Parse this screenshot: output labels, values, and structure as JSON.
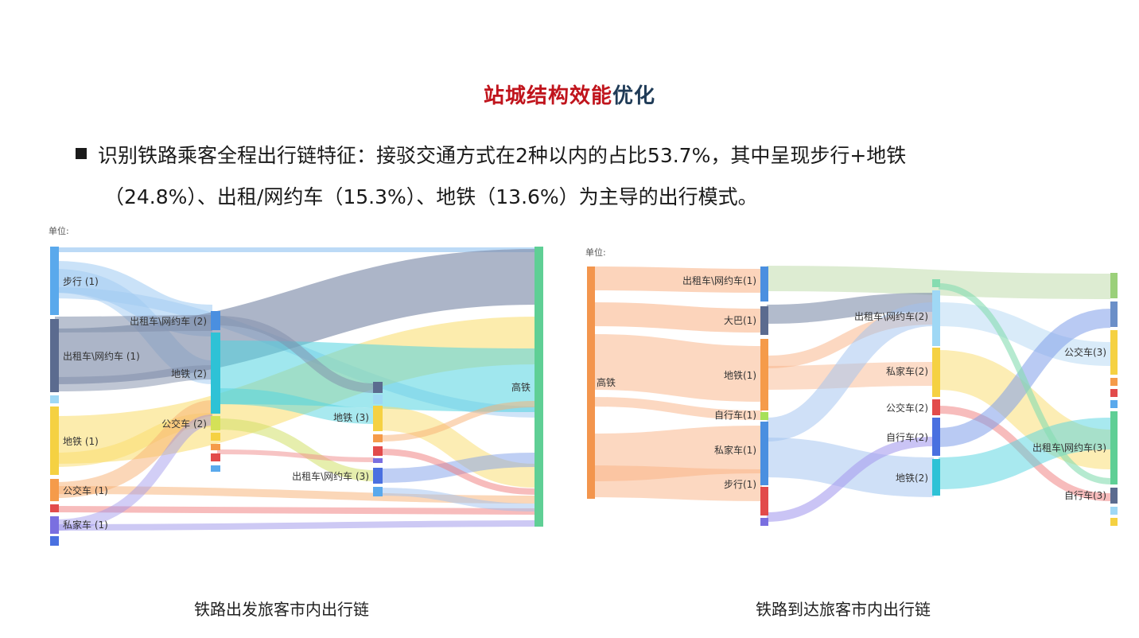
{
  "title": {
    "part1": "站城结构效能",
    "part2": "优化"
  },
  "bullet": {
    "line1": "识别铁路乘客全程出行链特征：接驳交通方式在2种以内的占比53.7%，其中呈现步行+地铁",
    "line2": "（24.8%）、出租/网约车（15.3%）、地铁（13.6%）为主导的出行模式。"
  },
  "left_chart": {
    "unit": "单位:",
    "caption": "铁路出发旅客市内出行链",
    "labels": {
      "walk1": "步行 (1)",
      "taxi1": "出租车\\网约车 (1)",
      "metro1": "地铁 (1)",
      "bus1": "公交车 (1)",
      "car1": "私家车 (1)",
      "taxi2": "出租车\\网约车 (2)",
      "metro2": "地铁 (2)",
      "bus2": "公交车 (2)",
      "metro3": "地铁 (3)",
      "taxi3": "出租车\\网约车 (3)",
      "hsr": "高铁"
    }
  },
  "right_chart": {
    "unit": "单位:",
    "caption": "铁路到达旅客市内出行链",
    "labels": {
      "hsr": "高铁",
      "taxi1": "出租车\\网约车(1)",
      "bus_b1": "大巴(1)",
      "metro1": "地铁(1)",
      "bike1": "自行车(1)",
      "car1": "私家车(1)",
      "walk1": "步行(1)",
      "taxi2": "出租车\\网约车(2)",
      "car2": "私家车(2)",
      "bus2": "公交车(2)",
      "bike2": "自行车(2)",
      "metro2": "地铁(2)",
      "bus3": "公交车(3)",
      "taxi3": "出租车\\网约车(3)",
      "bike3": "自行车(3)"
    }
  },
  "colors": {
    "walk": "#5aa9ec",
    "taxi": "#5b6b8f",
    "metro": "#f5d142",
    "bus": "#f59b4a",
    "car": "#7a6fe0",
    "metro_cyan": "#2ec2d6",
    "red": "#e24b4b",
    "green": "#5fcf95",
    "orange": "#f3954d",
    "blue": "#4a8fe0"
  }
}
